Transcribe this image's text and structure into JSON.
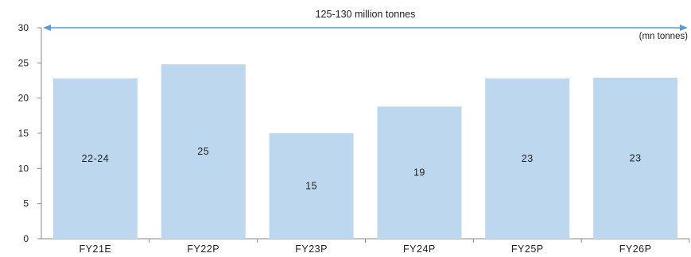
{
  "chart_data": {
    "type": "bar",
    "categories": [
      "FY21E",
      "FY22P",
      "FY23P",
      "FY24P",
      "FY25P",
      "FY26P"
    ],
    "values": [
      22.8,
      24.8,
      15.0,
      18.8,
      22.8,
      22.9
    ],
    "data_labels": [
      "22-24",
      "25",
      "15",
      "19",
      "23",
      "23"
    ],
    "ylim": [
      0,
      30
    ],
    "yticks": [
      0,
      5,
      10,
      15,
      20,
      25,
      30
    ],
    "unit_label": "(mn tonnes)",
    "annotation": {
      "text": "125-130  million tonnes",
      "y": 30
    },
    "grid": false,
    "legend": "none",
    "colors": {
      "bar": "#bdd7ee",
      "arrow": "#5b9bd5",
      "axis": "#888888"
    }
  }
}
